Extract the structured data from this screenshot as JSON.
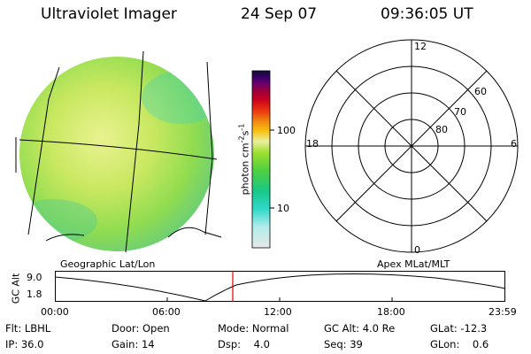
{
  "header": {
    "instrument": "Ultraviolet Imager",
    "date": "24 Sep 07",
    "time": "09:36:05 UT"
  },
  "colorbar": {
    "unit_label": "photon cm",
    "unit_sup1": "-2",
    "unit_s": "s",
    "unit_sup2": "-1",
    "ticks": [
      "100",
      "10"
    ],
    "colors": [
      "#e8e8e8",
      "#b0ecec",
      "#30d8c8",
      "#18c888",
      "#50d040",
      "#a0e030",
      "#e8f0a0",
      "#f8c010",
      "#f08010",
      "#e83010",
      "#c80020",
      "#980040",
      "#680070",
      "#300060",
      "#101030"
    ]
  },
  "images": {
    "left_caption": "Geographic Lat/Lon",
    "right_caption": "Apex MLat/MLT"
  },
  "polar": {
    "mlt_labels": {
      "top": "12",
      "left": "18",
      "right": "6",
      "bottom": "0"
    },
    "lat_labels": [
      "60",
      "70",
      "80"
    ]
  },
  "timeline": {
    "y_label": "GC Alt",
    "y_ticks": [
      "9.0",
      "1.8"
    ],
    "x_ticks": [
      "00:00",
      "06:00",
      "12:00",
      "18:00",
      "23:59"
    ],
    "current_color": "#e00000"
  },
  "status": {
    "flt": "Flt: LBHL",
    "ip": "IP: 36.0",
    "door": "Door: Open",
    "gain": "Gain: 14",
    "mode": "Mode: Normal",
    "dsp": "Dsp:    4.0",
    "gcalt": "GC Alt: 4.0 Re",
    "seq": "Seq: 39",
    "glat": "GLat: -12.3",
    "glon": "GLon:    0.6"
  }
}
